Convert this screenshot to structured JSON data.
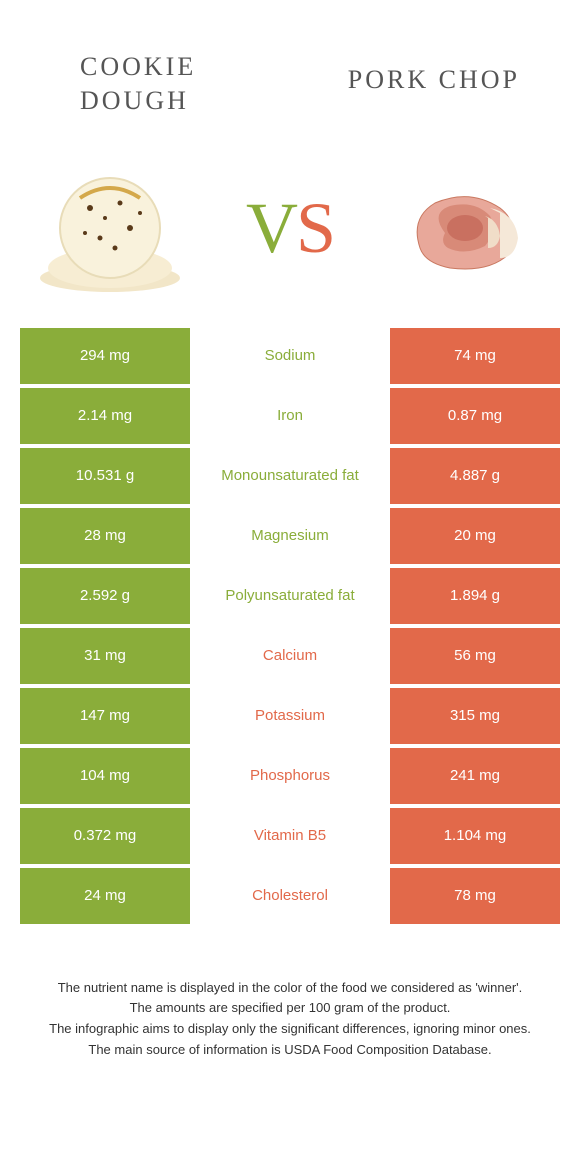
{
  "colors": {
    "green": "#8aad3a",
    "orange": "#e2694a",
    "text_mid_green": "#8aad3a",
    "text_mid_orange": "#e2694a"
  },
  "header": {
    "left_line1": "COOKIE",
    "left_line2": "DOUGH",
    "right": "PORK CHOP"
  },
  "vs": {
    "v": "V",
    "s": "S"
  },
  "rows": [
    {
      "left": "294 mg",
      "label": "Sodium",
      "right": "74 mg",
      "winner": "left"
    },
    {
      "left": "2.14 mg",
      "label": "Iron",
      "right": "0.87 mg",
      "winner": "left"
    },
    {
      "left": "10.531 g",
      "label": "Monounsaturated fat",
      "right": "4.887 g",
      "winner": "left"
    },
    {
      "left": "28 mg",
      "label": "Magnesium",
      "right": "20 mg",
      "winner": "left"
    },
    {
      "left": "2.592 g",
      "label": "Polyunsaturated fat",
      "right": "1.894 g",
      "winner": "left"
    },
    {
      "left": "31 mg",
      "label": "Calcium",
      "right": "56 mg",
      "winner": "right"
    },
    {
      "left": "147 mg",
      "label": "Potassium",
      "right": "315 mg",
      "winner": "right"
    },
    {
      "left": "104 mg",
      "label": "Phosphorus",
      "right": "241 mg",
      "winner": "right"
    },
    {
      "left": "0.372 mg",
      "label": "Vitamin B5",
      "right": "1.104 mg",
      "winner": "right"
    },
    {
      "left": "24 mg",
      "label": "Cholesterol",
      "right": "78 mg",
      "winner": "right"
    }
  ],
  "footer": {
    "line1": "The nutrient name is displayed in the color of the food we considered as 'winner'.",
    "line2": "The amounts are specified per 100 gram of the product.",
    "line3": "The infographic aims to display only the significant differences, ignoring minor ones.",
    "line4": "The main source of information is USDA Food Composition Database."
  }
}
